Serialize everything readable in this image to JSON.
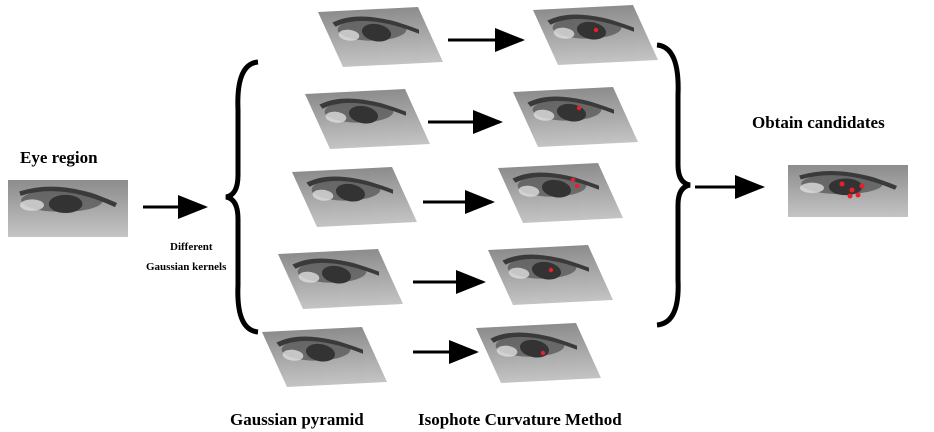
{
  "labels": {
    "eye_region": "Eye region",
    "kernels_line1": "Different",
    "kernels_line2": "Gaussian kernels",
    "obtain": "Obtain candidates",
    "pyramid": "Gaussian pyramid",
    "isophote": "Isophote Curvature Method"
  }
}
